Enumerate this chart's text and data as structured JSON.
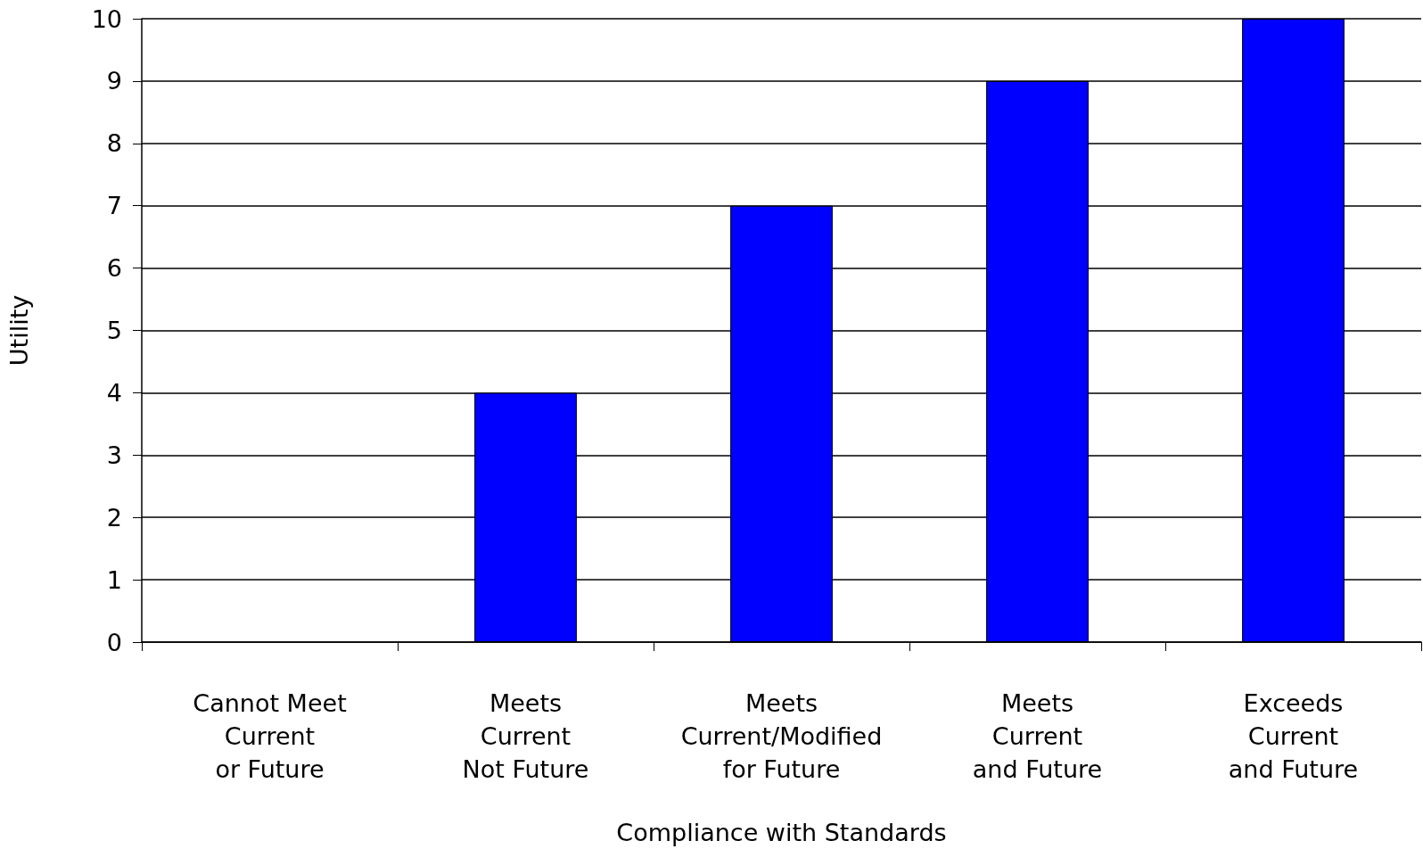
{
  "chart_data": {
    "type": "bar",
    "xlabel": "Compliance with Standards",
    "ylabel": "Utility",
    "categories": [
      "Cannot Meet\nCurrent\nor Future",
      "Meets\nCurrent\nNot Future",
      "Meets\nCurrent/Modified\nfor Future",
      "Meets\nCurrent\nand Future",
      "Exceeds\nCurrent\nand Future"
    ],
    "values": [
      0,
      4,
      7,
      9,
      10
    ],
    "color": "#0000ff",
    "ylim": [
      0,
      10
    ],
    "yticks": [
      0,
      1,
      2,
      3,
      4,
      5,
      6,
      7,
      8,
      9,
      10
    ],
    "grid": "y"
  }
}
